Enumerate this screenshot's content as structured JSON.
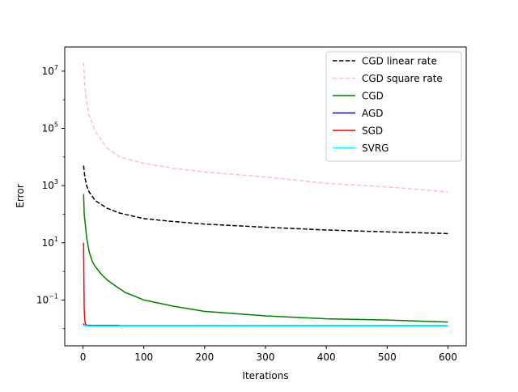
{
  "chart_data": {
    "type": "line",
    "title": "",
    "xlabel": "Iterations",
    "ylabel": "Error",
    "xlim": [
      -30,
      630
    ],
    "ylim": [
      0.0025,
      70000000
    ],
    "yscale": "log",
    "grid": false,
    "legend_position": "top-right",
    "x_ticks": [
      0,
      100,
      200,
      300,
      400,
      500,
      600
    ],
    "y_ticks": [
      {
        "value": 0.1,
        "base": "10",
        "exp": "−1"
      },
      {
        "value": 10,
        "base": "10",
        "exp": "1"
      },
      {
        "value": 1000,
        "base": "10",
        "exp": "3"
      },
      {
        "value": 100000,
        "base": "10",
        "exp": "5"
      },
      {
        "value": 10000000,
        "base": "10",
        "exp": "7"
      }
    ],
    "series": [
      {
        "name": "CGD linear rate",
        "color": "#000000",
        "dash": "dashed",
        "x": [
          1,
          3,
          6,
          10,
          20,
          40,
          60,
          100,
          150,
          200,
          300,
          400,
          500,
          600
        ],
        "y": [
          5000,
          2000,
          1000,
          600,
          300,
          160,
          110,
          70,
          55,
          45,
          35,
          28,
          24,
          21
        ]
      },
      {
        "name": "CGD square rate",
        "color": "#ffc0cb",
        "dash": "dashed",
        "x": [
          1,
          3,
          6,
          10,
          20,
          40,
          60,
          100,
          150,
          200,
          300,
          400,
          500,
          600
        ],
        "y": [
          20000000,
          3000000,
          800000,
          300000,
          80000,
          20000,
          10000,
          6000,
          4000,
          3000,
          2000,
          1200,
          900,
          600
        ]
      },
      {
        "name": "CGD",
        "color": "#008000",
        "dash": "solid",
        "x": [
          1,
          2,
          4,
          6,
          10,
          15,
          20,
          30,
          40,
          50,
          60,
          70,
          80,
          100,
          150,
          200,
          300,
          400,
          500,
          600
        ],
        "y": [
          500,
          100,
          40,
          15,
          5,
          2.3,
          1.5,
          0.8,
          0.5,
          0.35,
          0.25,
          0.18,
          0.15,
          0.1,
          0.06,
          0.04,
          0.028,
          0.022,
          0.02,
          0.017
        ]
      },
      {
        "name": "AGD",
        "color": "#0000ff",
        "dash": "solid",
        "x": [
          1,
          2,
          5,
          10,
          600
        ],
        "y": [
          0.015,
          0.013,
          0.0125,
          0.0125,
          0.0125
        ]
      },
      {
        "name": "SGD",
        "color": "#ff0000",
        "dash": "solid",
        "x": [
          1,
          1.5,
          2,
          3,
          4,
          5,
          7,
          10,
          20,
          40,
          60
        ],
        "y": [
          10,
          0.5,
          0.05,
          0.02,
          0.015,
          0.014,
          0.013,
          0.013,
          0.013,
          0.013,
          0.013
        ]
      },
      {
        "name": "SVRG",
        "color": "#00ffff",
        "dash": "solid",
        "x": [
          1,
          5,
          10,
          30,
          60,
          100,
          300,
          600
        ],
        "y": [
          0.013,
          0.0125,
          0.0123,
          0.0122,
          0.0122,
          0.0122,
          0.0122,
          0.0122
        ]
      }
    ]
  }
}
